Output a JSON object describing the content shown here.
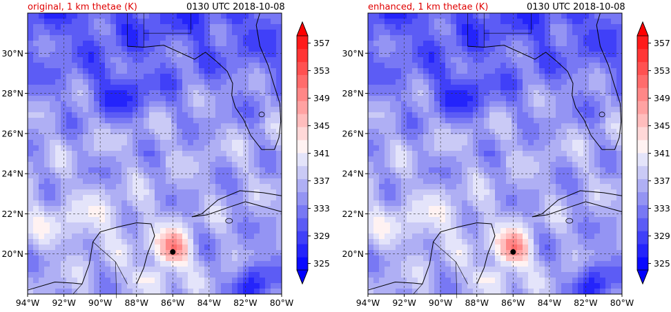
{
  "panels": [
    {
      "title_left": "original, 1 km thetae (K)",
      "title_right": "0130 UTC 2018-10-08"
    },
    {
      "title_left": "enhanced, 1 km thetae (K)",
      "title_right": "0130 UTC 2018-10-08"
    }
  ],
  "colorbar": {
    "levels": [
      325,
      327,
      329,
      331,
      333,
      335,
      337,
      339,
      341,
      343,
      345,
      347,
      349,
      351,
      353,
      355,
      357,
      359
    ],
    "tick_labels": [
      "325",
      "329",
      "333",
      "337",
      "341",
      "345",
      "349",
      "353",
      "357"
    ],
    "colors": [
      "#0a0aff",
      "#2424fb",
      "#4040f8",
      "#5c5cf5",
      "#7878f4",
      "#9494f3",
      "#afaff4",
      "#cacaf6",
      "#e4e4fa",
      "#fff2f2",
      "#ffd8d8",
      "#ffbdbd",
      "#ffa2a2",
      "#ff8787",
      "#ff6c6c",
      "#ff5151",
      "#ff3636",
      "#ff1b1b"
    ],
    "under_color": "#0000ff",
    "over_color": "#ff0000"
  },
  "axes": {
    "x_tick_labels": [
      "94°W",
      "92°W",
      "90°W",
      "88°W",
      "86°W",
      "84°W",
      "82°W",
      "80°W"
    ],
    "y_tick_labels": [
      "20°N",
      "22°N",
      "24°N",
      "26°N",
      "28°N",
      "30°N"
    ]
  },
  "chart_data": [
    {
      "type": "heatmap",
      "title": "original, 1 km thetae (K)",
      "subtitle": "0130 UTC 2018-10-08",
      "x_range": [
        -94,
        -80
      ],
      "y_range": [
        18,
        32
      ],
      "z_range": [
        325,
        357
      ],
      "grid": true,
      "marker": {
        "lon": -86.0,
        "lat": 20.1
      }
    },
    {
      "type": "heatmap",
      "title": "enhanced, 1 km thetae (K)",
      "subtitle": "0130 UTC 2018-10-08",
      "x_range": [
        -94,
        -80
      ],
      "y_range": [
        18,
        32
      ],
      "z_range": [
        325,
        357
      ],
      "grid": true,
      "marker": {
        "lon": -86.0,
        "lat": 20.1
      }
    }
  ]
}
